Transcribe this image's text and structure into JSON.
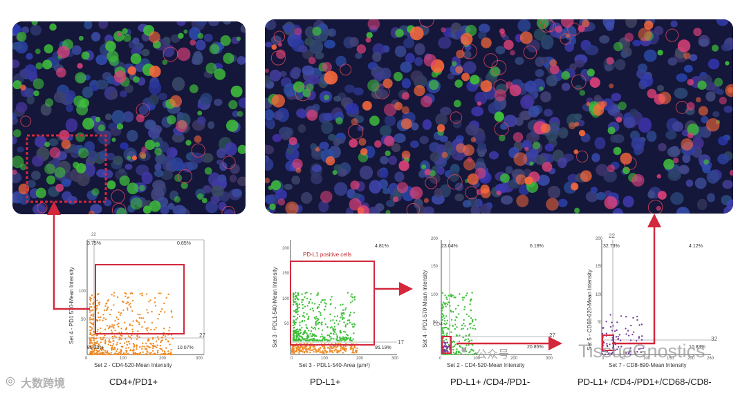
{
  "plots": [
    {
      "id": "cd4-pd1",
      "corner_top": "22",
      "corner_right": "27",
      "ylabel": "Set 4 - PD1 570-Mean Intensity",
      "xlabel": "Set 2 - CD4-520-Mean Intensity",
      "yticks": [
        "100",
        "50"
      ],
      "xticks": [
        "0",
        "100",
        "200",
        "300"
      ],
      "pct_tl": "3.75%",
      "pct_tr": "0.85%",
      "pct_bl": "85.33%",
      "pct_br": "10.07%",
      "caption": "CD4+/PD1+"
    },
    {
      "id": "pdl1",
      "corner_right": "17",
      "ylabel": "Set 3 - PDL1-540-Mean Intensity",
      "xlabel": "Set 3 - PDL1-540-Area (µm²)",
      "yticks": [
        "200",
        "150",
        "100",
        "50"
      ],
      "xticks": [
        "0",
        "100",
        "200",
        "300"
      ],
      "gate_label": "PD-L1 positive cells",
      "pct_tr": "4.81%",
      "pct_br": "95.19%",
      "caption": "PD-L1+"
    },
    {
      "id": "pdl1-cd4-pd1",
      "corner_right": "27",
      "ylabel": "Set 4 - PD1-570-Mean Intensity",
      "xlabel": "Set 2 - CD4-520-Mean Intensity",
      "yticks": [
        "200",
        "150",
        "100",
        "50"
      ],
      "xticks": [
        "0",
        "100",
        "200",
        "300"
      ],
      "pct_tl": "23.04%",
      "pct_tr": "6.18%",
      "pct_br": "20.85%",
      "gate_text": "CD4",
      "caption": "PD-L1+ /CD4-/PD1-"
    },
    {
      "id": "pdl1-cd4-pd1-cd68-cd8",
      "corner_top": "22",
      "corner_right": "32",
      "ylabel": "Set 5 - CD68-620-Mean Intensity",
      "xlabel": "Set 7 - CD8-690-Mean Intensity",
      "yticks": [
        "200",
        "150",
        "100",
        "50"
      ],
      "xticks": [
        "0",
        "50",
        "100",
        "150",
        "200",
        "260"
      ],
      "pct_tl": "32.73%",
      "pct_tr": "4.12%",
      "pct_br": "10.83%",
      "caption": "PD-L1+ /CD4-/PD1+/CD68-/CD8-"
    }
  ],
  "watermarks": {
    "left": "大数跨境",
    "right_cn": "公众号 ·",
    "right_en": "TissueGnostics"
  },
  "colors": {
    "gate": "#d3283c",
    "orange": "#f08a24",
    "green": "#3fbf3a",
    "purple": "#7a3fa0",
    "tissue": "#14163a"
  }
}
